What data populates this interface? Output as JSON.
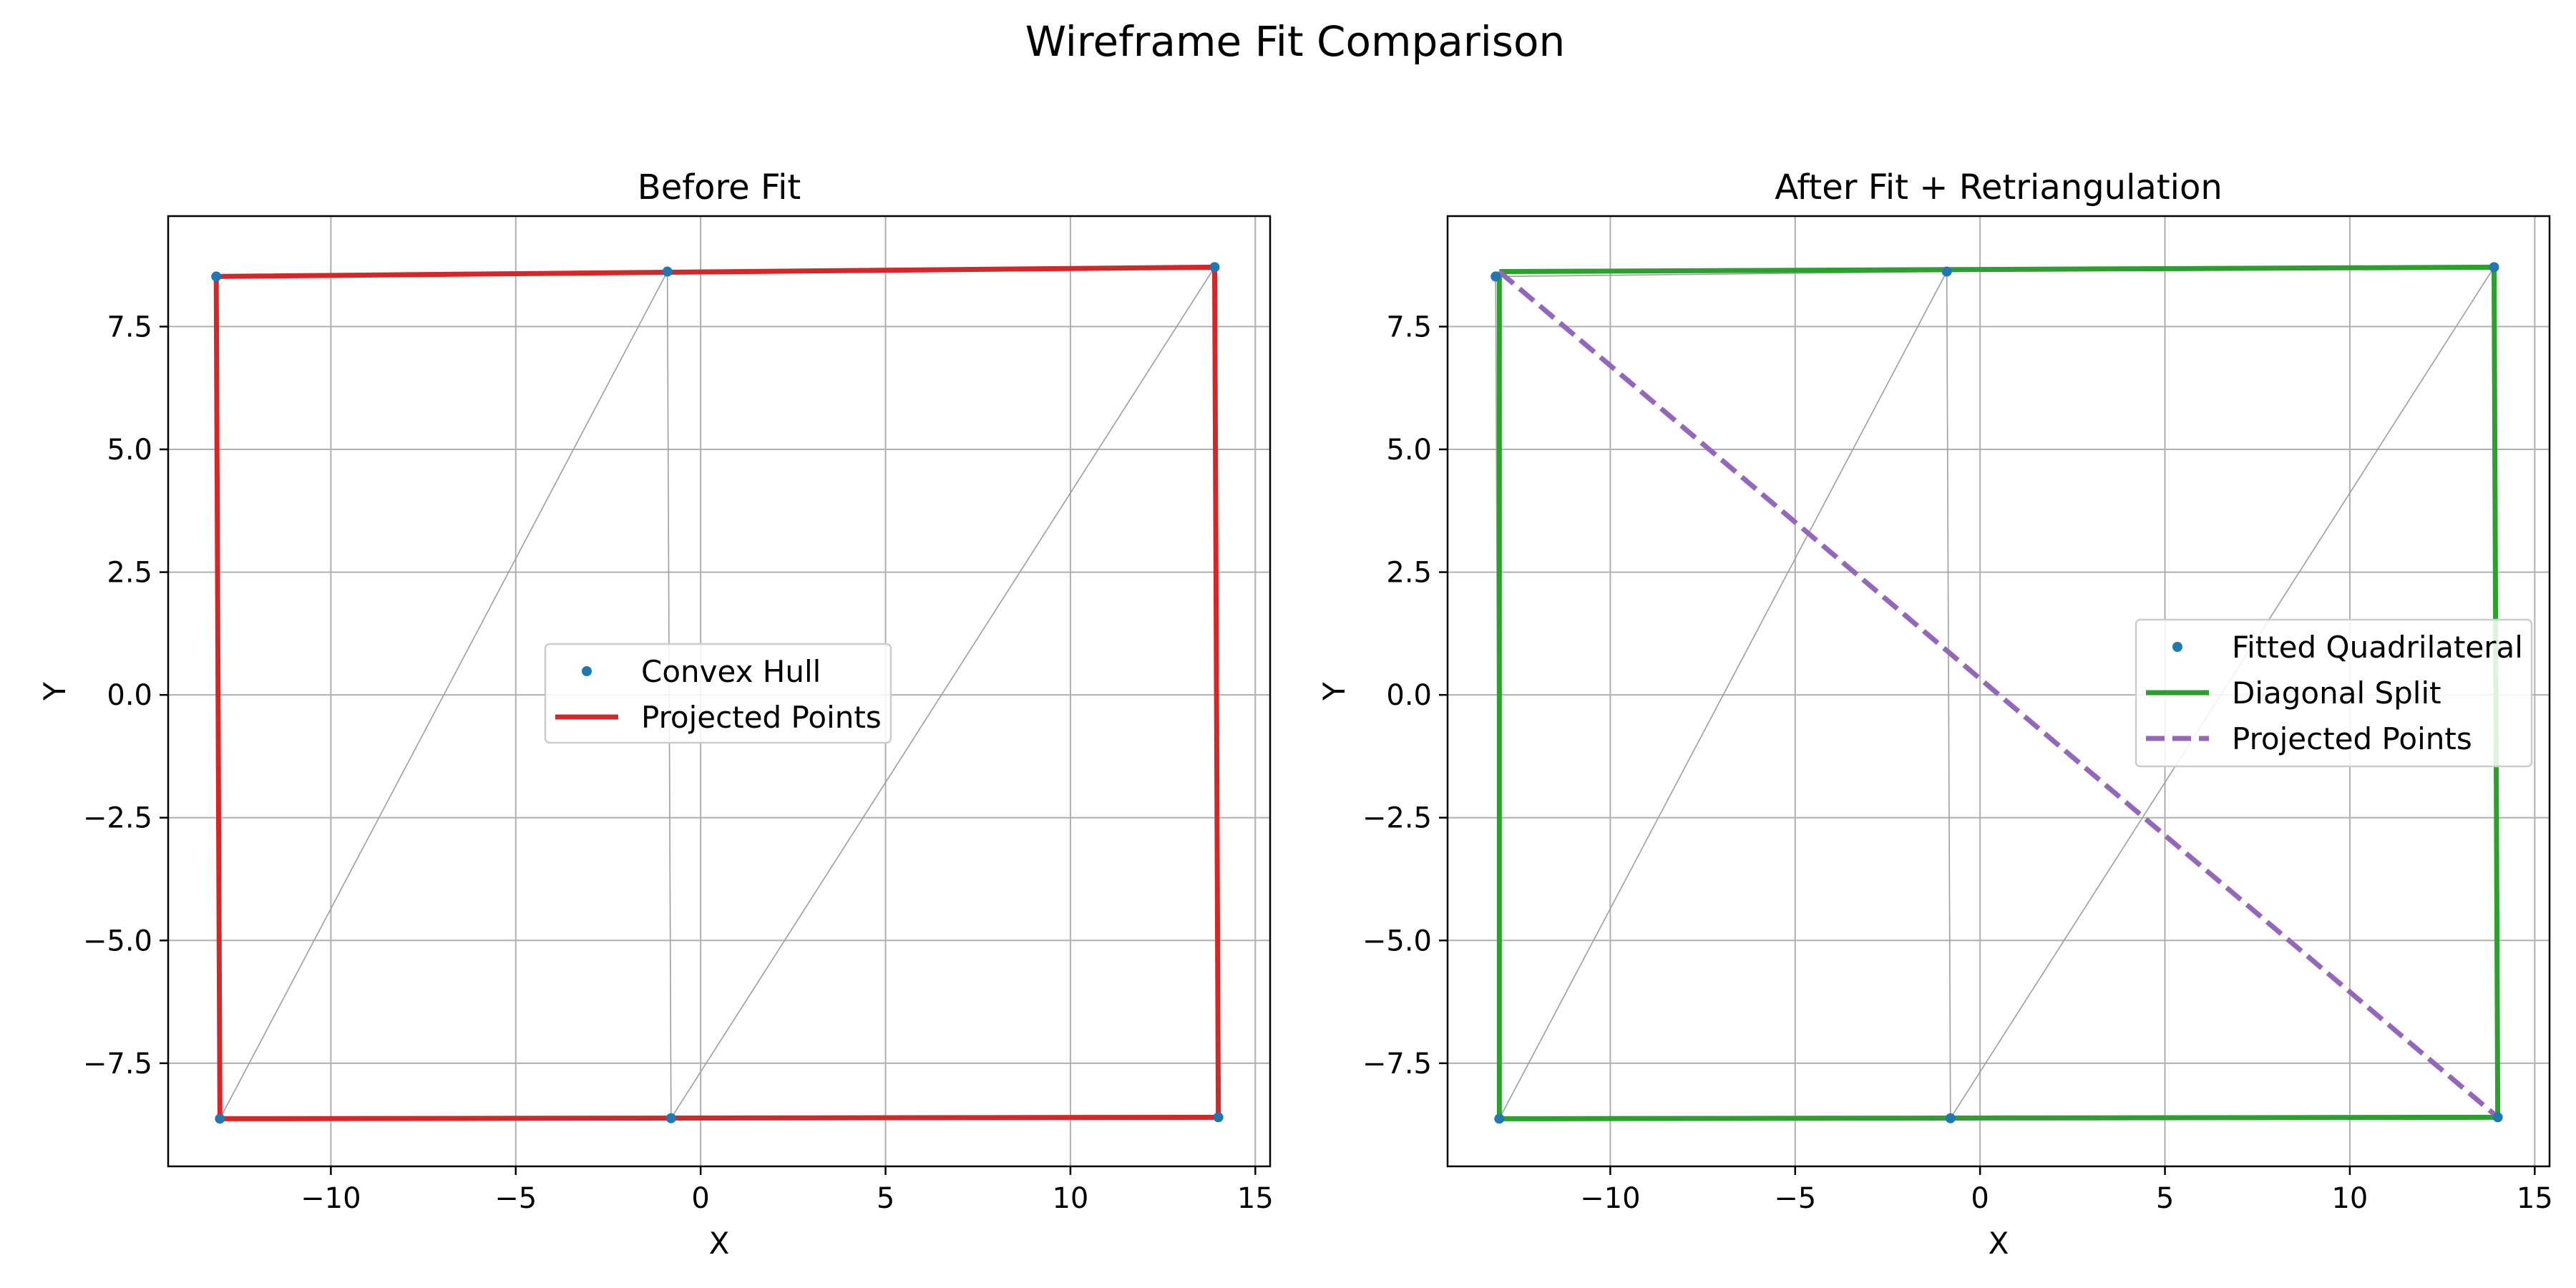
{
  "figure": {
    "title": "Wireframe Fit Comparison"
  },
  "colors": {
    "points": "#1f77b4",
    "before_outline": "#d62728",
    "after_outline": "#2ca02c",
    "diagonal": "#9467bd",
    "mesh": "#9e9e9e",
    "grid": "#b0b0b0"
  },
  "chart_data": [
    {
      "type": "line",
      "title": "Before Fit",
      "xlabel": "X",
      "ylabel": "Y",
      "xlim": [
        -14.4,
        15.4
      ],
      "ylim": [
        -9.6,
        9.75
      ],
      "xticks": [
        -10,
        -5,
        0,
        5,
        10,
        15
      ],
      "yticks": [
        -7.5,
        -5.0,
        -2.5,
        0.0,
        2.5,
        5.0,
        7.5
      ],
      "xtick_labels": [
        "−10",
        "−5",
        "0",
        "5",
        "10",
        "15"
      ],
      "ytick_labels": [
        "−7.5",
        "−5.0",
        "−2.5",
        "0.0",
        "2.5",
        "5.0",
        "7.5"
      ],
      "grid": true,
      "legend_position": "center",
      "vertices": [
        {
          "x": -13.1,
          "y": 8.52
        },
        {
          "x": -0.9,
          "y": 8.62
        },
        {
          "x": 13.9,
          "y": 8.71
        },
        {
          "x": -13.0,
          "y": -8.63
        },
        {
          "x": -0.8,
          "y": -8.62
        },
        {
          "x": 14.0,
          "y": -8.6
        }
      ],
      "mesh_edges": [
        [
          0,
          1
        ],
        [
          1,
          2
        ],
        [
          3,
          4
        ],
        [
          4,
          5
        ],
        [
          0,
          3
        ],
        [
          1,
          4
        ],
        [
          2,
          5
        ],
        [
          3,
          1
        ],
        [
          4,
          2
        ]
      ],
      "outline": [
        [
          -13.1,
          8.52
        ],
        [
          13.9,
          8.71
        ],
        [
          14.0,
          -8.6
        ],
        [
          -13.0,
          -8.63
        ],
        [
          -13.1,
          8.52
        ]
      ],
      "series": [
        {
          "name": "Convex Hull",
          "kind": "scatter"
        },
        {
          "name": "Projected Points",
          "kind": "line"
        }
      ]
    },
    {
      "type": "line",
      "title": "After Fit + Retriangulation",
      "xlabel": "X",
      "ylabel": "Y",
      "xlim": [
        -14.4,
        15.4
      ],
      "ylim": [
        -9.6,
        9.75
      ],
      "xticks": [
        -10,
        -5,
        0,
        5,
        10,
        15
      ],
      "yticks": [
        -7.5,
        -5.0,
        -2.5,
        0.0,
        2.5,
        5.0,
        7.5
      ],
      "xtick_labels": [
        "−10",
        "−5",
        "0",
        "5",
        "10",
        "15"
      ],
      "ytick_labels": [
        "−7.5",
        "−5.0",
        "−2.5",
        "0.0",
        "2.5",
        "5.0",
        "7.5"
      ],
      "grid": true,
      "legend_position": "center-right",
      "vertices": [
        {
          "x": -13.1,
          "y": 8.52
        },
        {
          "x": -0.9,
          "y": 8.62
        },
        {
          "x": 13.9,
          "y": 8.71
        },
        {
          "x": -13.0,
          "y": -8.63
        },
        {
          "x": -0.8,
          "y": -8.62
        },
        {
          "x": 14.0,
          "y": -8.6
        }
      ],
      "mesh_edges": [
        [
          0,
          1
        ],
        [
          1,
          2
        ],
        [
          3,
          4
        ],
        [
          4,
          5
        ],
        [
          0,
          3
        ],
        [
          1,
          4
        ],
        [
          2,
          5
        ],
        [
          3,
          1
        ],
        [
          4,
          2
        ]
      ],
      "outline": [
        [
          -13.0,
          8.62
        ],
        [
          13.9,
          8.71
        ],
        [
          14.0,
          -8.6
        ],
        [
          -13.0,
          -8.63
        ],
        [
          -13.0,
          8.62
        ]
      ],
      "diagonal": [
        [
          -13.0,
          8.62
        ],
        [
          14.0,
          -8.6
        ]
      ],
      "series": [
        {
          "name": "Fitted Quadrilateral",
          "kind": "scatter"
        },
        {
          "name": "Diagonal Split",
          "kind": "line"
        },
        {
          "name": "Projected Points",
          "kind": "dashed"
        }
      ]
    }
  ]
}
